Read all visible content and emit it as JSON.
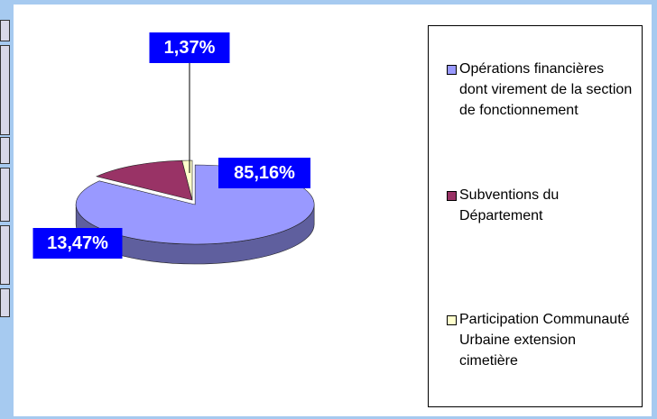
{
  "chart_data": {
    "type": "pie",
    "categories": [
      "Opérations financières dont virement de la section de fonctionnement",
      "Subventions du Département",
      "Participation Communauté Urbaine extension cimetière"
    ],
    "values": [
      85.16,
      13.47,
      1.37
    ],
    "value_labels": [
      "85,16%",
      "13,47%",
      "1,37%"
    ],
    "colors": [
      "#9999ff",
      "#993366",
      "#ffffcc"
    ],
    "legend": "right"
  }
}
